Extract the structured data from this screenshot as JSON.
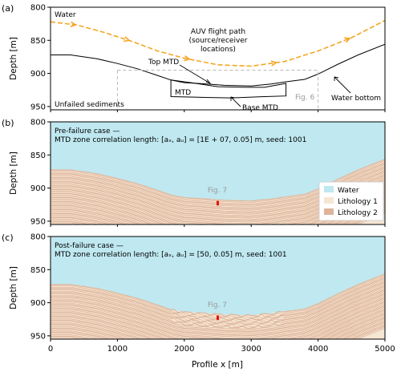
{
  "panels": [
    {
      "id": "a",
      "label": "(a)",
      "ylabel": "Depth [m]",
      "ylim": [
        955,
        800
      ],
      "yticks": [
        800,
        850,
        900,
        950
      ],
      "annotations": {
        "water": "Water",
        "auv_line1": "AUV flight path",
        "auv_line2": "(source/receiver",
        "auv_line3": "locations)",
        "top_mtd": "Top MTD",
        "mtd": "MTD",
        "base_mtd": "Base MTD",
        "unfailed": "Unfailed sediments",
        "fig_ref": "Fig. 6",
        "water_bottom": "Water bottom"
      },
      "colors": {
        "auv_path": "#f5a623",
        "seabed": "#000000",
        "fig_box": "#b8b8b8"
      }
    },
    {
      "id": "b",
      "label": "(b)",
      "ylabel": "Depth [m]",
      "ylim": [
        955,
        800
      ],
      "yticks": [
        800,
        850,
        900,
        950
      ],
      "title_line1": "Pre-failure case —",
      "title_line2": "MTD zone correlation length: [aₓ, aᵤ] = [1E + 07, 0.05] m, seed: 1001",
      "fig_ref": "Fig. 7",
      "marker_x": 2500,
      "legend": [
        {
          "name": "Water",
          "color": "#bfe8f0"
        },
        {
          "name": "Lithology 1",
          "color": "#f6e6d4"
        },
        {
          "name": "Lithology 2",
          "color": "#ddb49a"
        }
      ]
    },
    {
      "id": "c",
      "label": "(c)",
      "ylabel": "Depth [m]",
      "ylim": [
        955,
        800
      ],
      "yticks": [
        800,
        850,
        900,
        950
      ],
      "title_line1": "Post-failure case —",
      "title_line2": "MTD zone correlation length: [aₓ, aᵤ] = [50, 0.05] m, seed: 1001",
      "fig_ref": "Fig. 7",
      "marker_x": 2500
    }
  ],
  "xaxis": {
    "label": "Profile x [m]",
    "xlim": [
      0,
      5000
    ],
    "ticks": [
      0,
      1000,
      2000,
      3000,
      4000,
      5000
    ]
  },
  "profiles": {
    "seabed": [
      [
        0,
        872
      ],
      [
        300,
        872
      ],
      [
        700,
        878
      ],
      [
        1000,
        885
      ],
      [
        1300,
        893
      ],
      [
        1600,
        903
      ],
      [
        1800,
        910
      ],
      [
        2000,
        914
      ],
      [
        2200,
        915
      ],
      [
        2600,
        918
      ],
      [
        3000,
        919
      ],
      [
        3300,
        916
      ],
      [
        3500,
        913
      ],
      [
        3800,
        909
      ],
      [
        4000,
        901
      ],
      [
        4300,
        886
      ],
      [
        4600,
        872
      ],
      [
        5000,
        856
      ]
    ],
    "auv_path": [
      [
        0,
        822
      ],
      [
        400,
        827
      ],
      [
        800,
        838
      ],
      [
        1200,
        851
      ],
      [
        1600,
        866
      ],
      [
        2000,
        877
      ],
      [
        2500,
        887
      ],
      [
        3000,
        889
      ],
      [
        3500,
        882
      ],
      [
        4000,
        866
      ],
      [
        4500,
        846
      ],
      [
        5000,
        820
      ]
    ],
    "mtd_top": [
      [
        1800,
        910
      ],
      [
        2100,
        914
      ],
      [
        2500,
        920
      ],
      [
        2900,
        921
      ],
      [
        3200,
        921
      ],
      [
        3520,
        915
      ]
    ],
    "mtd_base": [
      [
        1800,
        935
      ],
      [
        2200,
        936
      ],
      [
        2700,
        937
      ],
      [
        3200,
        935
      ],
      [
        3520,
        934
      ]
    ],
    "fig6_box": [
      [
        1000,
        895
      ],
      [
        4000,
        955
      ]
    ]
  }
}
